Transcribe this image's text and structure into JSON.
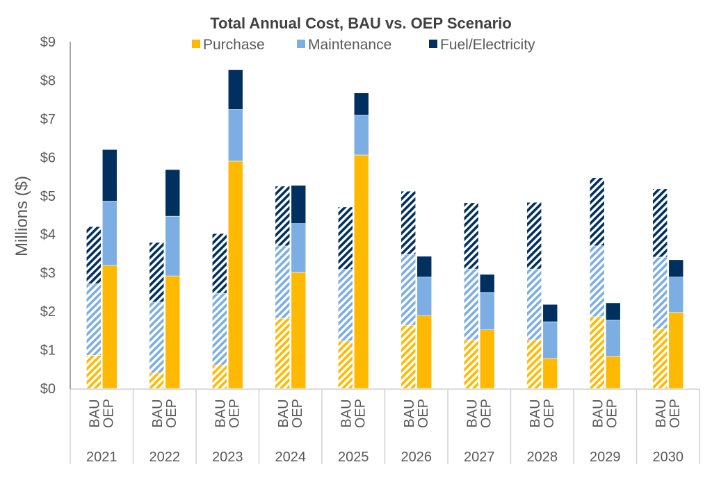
{
  "chart_data": {
    "type": "bar",
    "stacked": true,
    "title": "Total Annual Cost, BAU vs. OEP Scenario",
    "xlabel": "",
    "ylabel": "Millions ($)",
    "ylim": [
      0,
      9
    ],
    "yticks": [
      0,
      1,
      2,
      3,
      4,
      5,
      6,
      7,
      8,
      9
    ],
    "ytick_labels": [
      "$0",
      "$1",
      "$2",
      "$3",
      "$4",
      "$5",
      "$6",
      "$7",
      "$8",
      "$9"
    ],
    "grid": false,
    "legend_position": "top-center",
    "categories": [
      "2021",
      "2022",
      "2023",
      "2024",
      "2025",
      "2026",
      "2027",
      "2028",
      "2029",
      "2030"
    ],
    "scenarios": [
      "BAU",
      "OEP"
    ],
    "scenario_styles": {
      "BAU": "hatched",
      "OEP": "solid"
    },
    "series": [
      {
        "name": "Purchase",
        "color": "#FFB900",
        "BAU": [
          0.86,
          0.4,
          0.61,
          1.82,
          1.23,
          1.64,
          1.26,
          1.26,
          1.86,
          1.55
        ],
        "OEP": [
          3.19,
          2.92,
          5.9,
          3.01,
          6.06,
          1.89,
          1.52,
          0.78,
          0.83,
          1.97
        ]
      },
      {
        "name": "Maintenance",
        "color": "#7DAEE3",
        "BAU": [
          1.86,
          1.84,
          1.86,
          1.88,
          1.86,
          1.84,
          1.84,
          1.84,
          1.84,
          1.86
        ],
        "OEP": [
          1.67,
          1.55,
          1.34,
          1.27,
          1.03,
          1.0,
          0.97,
          0.95,
          0.94,
          0.92
        ]
      },
      {
        "name": "Fuel/Electricity",
        "color": "#00305F",
        "BAU": [
          1.48,
          1.55,
          1.55,
          1.55,
          1.62,
          1.64,
          1.72,
          1.73,
          1.77,
          1.77
        ],
        "OEP": [
          1.34,
          1.21,
          1.03,
          0.99,
          0.58,
          0.54,
          0.47,
          0.45,
          0.45,
          0.45
        ]
      }
    ],
    "totals": {
      "BAU": [
        4.2,
        3.79,
        4.02,
        5.25,
        4.71,
        5.12,
        4.82,
        4.83,
        5.47,
        5.18
      ],
      "OEP": [
        6.2,
        5.68,
        8.27,
        5.27,
        7.67,
        3.43,
        2.96,
        2.18,
        2.22,
        3.34
      ]
    }
  }
}
